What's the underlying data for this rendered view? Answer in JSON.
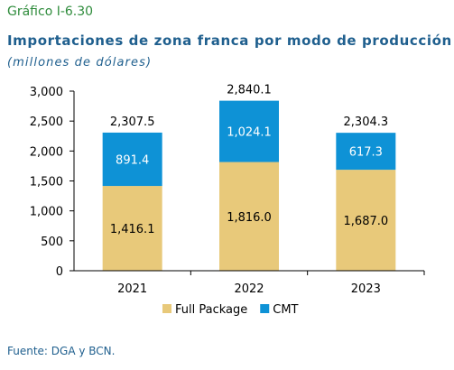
{
  "figure": {
    "number": "Gráfico I-6.30",
    "title": "Importaciones de zona franca por modo de producción",
    "subtitle": "(millones de dólares)",
    "source": "Fuente: DGA y BCN."
  },
  "chart_data": {
    "type": "bar",
    "stacked": true,
    "categories": [
      "2021",
      "2022",
      "2023"
    ],
    "series": [
      {
        "name": "Full Package",
        "values": [
          1416.1,
          1816.0,
          1687.0
        ],
        "labels": [
          "1,416.1",
          "1,816.0",
          "1,687.0"
        ],
        "color": "#e8c97a"
      },
      {
        "name": "CMT",
        "values": [
          891.4,
          1024.1,
          617.3
        ],
        "labels": [
          "891.4",
          "1,024.1",
          "617.3"
        ],
        "color": "#0e92d6"
      }
    ],
    "totals": [
      2307.5,
      2840.1,
      2304.3
    ],
    "total_labels": [
      "2,307.5",
      "2,840.1",
      "2,304.3"
    ],
    "ylim": [
      0,
      3000
    ],
    "yticks": [
      0,
      500,
      1000,
      1500,
      2000,
      2500,
      3000
    ],
    "ytick_labels": [
      "0",
      "500",
      "1,000",
      "1,500",
      "2,000",
      "2,500",
      "3,000"
    ],
    "grid": false,
    "legend": "bottom"
  }
}
